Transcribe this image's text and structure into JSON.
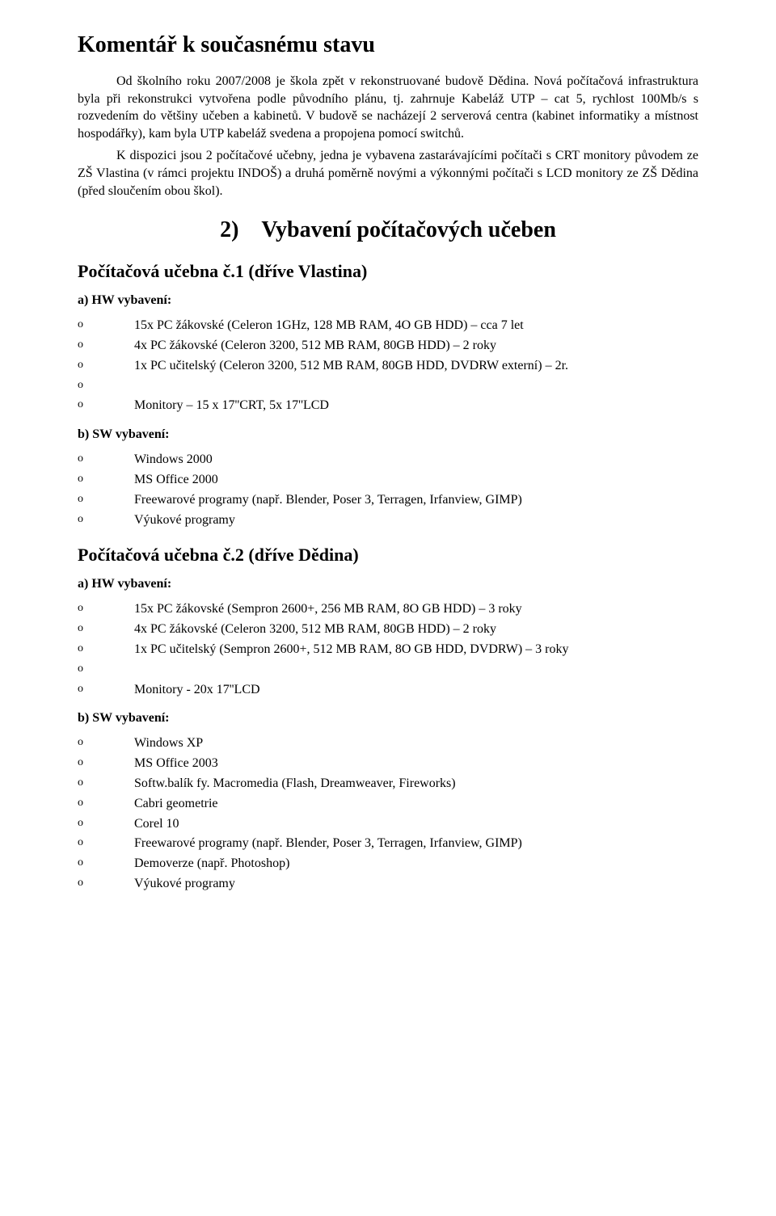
{
  "title": "Komentář k současnému stavu",
  "para1": "Od školního roku 2007/2008 je škola zpět v rekonstruované budově Dědina. Nová počítačová infrastruktura byla při rekonstrukci vytvořena podle původního plánu, tj. zahrnuje Kabeláž UTP – cat 5, rychlost 100Mb/s s rozvedením do většiny učeben a kabinetů. V budově se nacházejí 2 serverová centra (kabinet informatiky a místnost hospodářky), kam byla UTP kabeláž svedena a propojena pomocí switchů.",
  "para2": "K dispozici jsou 2 počítačové učebny, jedna je vybavena zastarávajícími počítači s CRT monitory původem ze ZŠ Vlastina (v rámci projektu INDOŠ) a druhá poměrně novými a výkonnými počítači s LCD monitory ze ZŠ Dědina (před sloučením obou škol).",
  "section2_title": "2) Vybavení počítačových učeben",
  "ucebna1": {
    "title": "Počítačová učebna č.1 (dříve Vlastina)",
    "hw_label": "a) HW vybavení:",
    "hw_items": [
      "15x PC žákovské (Celeron  1GHz, 128 MB RAM, 4O GB HDD) – cca 7 let",
      "4x PC žákovské (Celeron 3200, 512 MB RAM, 80GB HDD) – 2 roky",
      "1x PC učitelský (Celeron 3200, 512 MB RAM, 80GB HDD, DVDRW externí) – 2r.",
      "",
      "Monitory – 15 x 17''CRT, 5x 17''LCD"
    ],
    "sw_label": "b) SW vybavení:",
    "sw_items": [
      "Windows 2000",
      "MS Office 2000",
      "Freewarové programy (např. Blender, Poser 3, Terragen, Irfanview, GIMP)",
      "Výukové programy"
    ]
  },
  "ucebna2": {
    "title": "Počítačová učebna č.2 (dříve Dědina)",
    "hw_label": "a) HW vybavení:",
    "hw_items": [
      "15x PC žákovské (Sempron  2600+, 256 MB RAM, 8O GB HDD) – 3 roky",
      "4x PC žákovské (Celeron 3200, 512 MB RAM, 80GB HDD) – 2 roky",
      "1x PC učitelský (Sempron  2600+, 512 MB RAM, 8O GB HDD, DVDRW) – 3 roky",
      "",
      "Monitory - 20x 17''LCD"
    ],
    "sw_label": "b) SW vybavení:",
    "sw_items": [
      "Windows XP",
      "MS Office 2003",
      "Softw.balík fy. Macromedia (Flash, Dreamweaver, Fireworks)",
      "Cabri geometrie",
      "Corel 10",
      "Freewarové programy (např. Blender, Poser 3, Terragen, Irfanview, GIMP)",
      "Demoverze (např. Photoshop)",
      "Výukové programy"
    ]
  }
}
